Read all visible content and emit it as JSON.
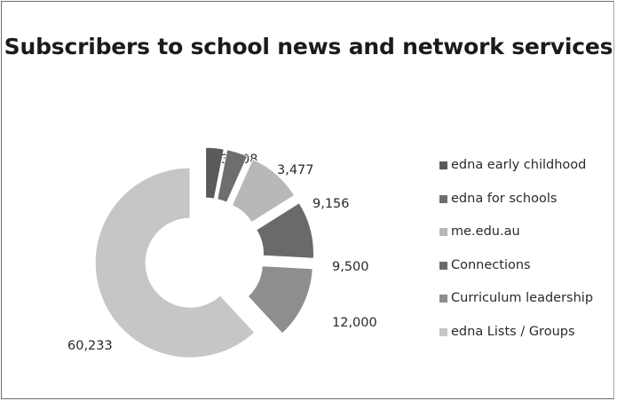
{
  "chart_data": {
    "type": "pie",
    "title": "Subscribers to school news and network services",
    "categories": [
      "edna early childhood",
      "edna for schools",
      "me.edu.au",
      "Connections",
      "Curriculum leadership",
      "edna Lists / Groups"
    ],
    "values": [
      3008,
      3477,
      9156,
      9500,
      12000,
      60233
    ],
    "data_labels": [
      "3,008",
      "3,477",
      "9,156",
      "9,500",
      "12,000",
      "60,233"
    ],
    "colors": [
      "#5a5a5a",
      "#6e6e6e",
      "#b8b8b8",
      "#6a6a6a",
      "#8e8e8e",
      "#c6c6c6"
    ],
    "legend_position": "right"
  }
}
